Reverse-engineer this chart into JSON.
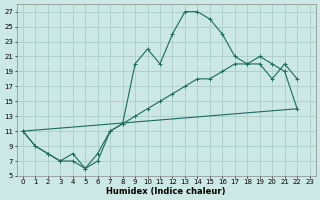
{
  "xlabel": "Humidex (Indice chaleur)",
  "bg_color": "#cce8e5",
  "grid_color": "#aaccca",
  "line_color": "#1a6b5a",
  "xlim": [
    -0.5,
    23.5
  ],
  "ylim": [
    5,
    28
  ],
  "xticks": [
    0,
    1,
    2,
    3,
    4,
    5,
    6,
    7,
    8,
    9,
    10,
    11,
    12,
    13,
    14,
    15,
    16,
    17,
    18,
    19,
    20,
    21,
    22,
    23
  ],
  "yticks": [
    5,
    7,
    9,
    11,
    13,
    15,
    17,
    19,
    21,
    23,
    25,
    27
  ],
  "curve1_x": [
    0,
    1,
    2,
    3,
    4,
    5,
    6,
    7,
    8,
    9,
    10,
    11,
    12,
    13,
    14,
    15,
    16,
    17,
    18,
    19,
    20,
    21,
    22
  ],
  "curve1_y": [
    11,
    9,
    8,
    7,
    8,
    6,
    8,
    11,
    12,
    20,
    22,
    20,
    24,
    27,
    27,
    26,
    24,
    21,
    20,
    20,
    18,
    20,
    18
  ],
  "curve2_x": [
    0,
    1,
    2,
    3,
    4,
    5,
    6,
    7,
    8,
    9,
    10,
    11,
    12,
    13,
    14,
    15,
    16,
    17,
    18,
    19,
    20,
    21,
    22
  ],
  "curve2_y": [
    11,
    9,
    8,
    7,
    7,
    6,
    7,
    11,
    12,
    13,
    14,
    15,
    16,
    17,
    18,
    18,
    19,
    20,
    20,
    21,
    20,
    19,
    14
  ],
  "curve3_x": [
    0,
    22
  ],
  "curve3_y": [
    11,
    14
  ]
}
